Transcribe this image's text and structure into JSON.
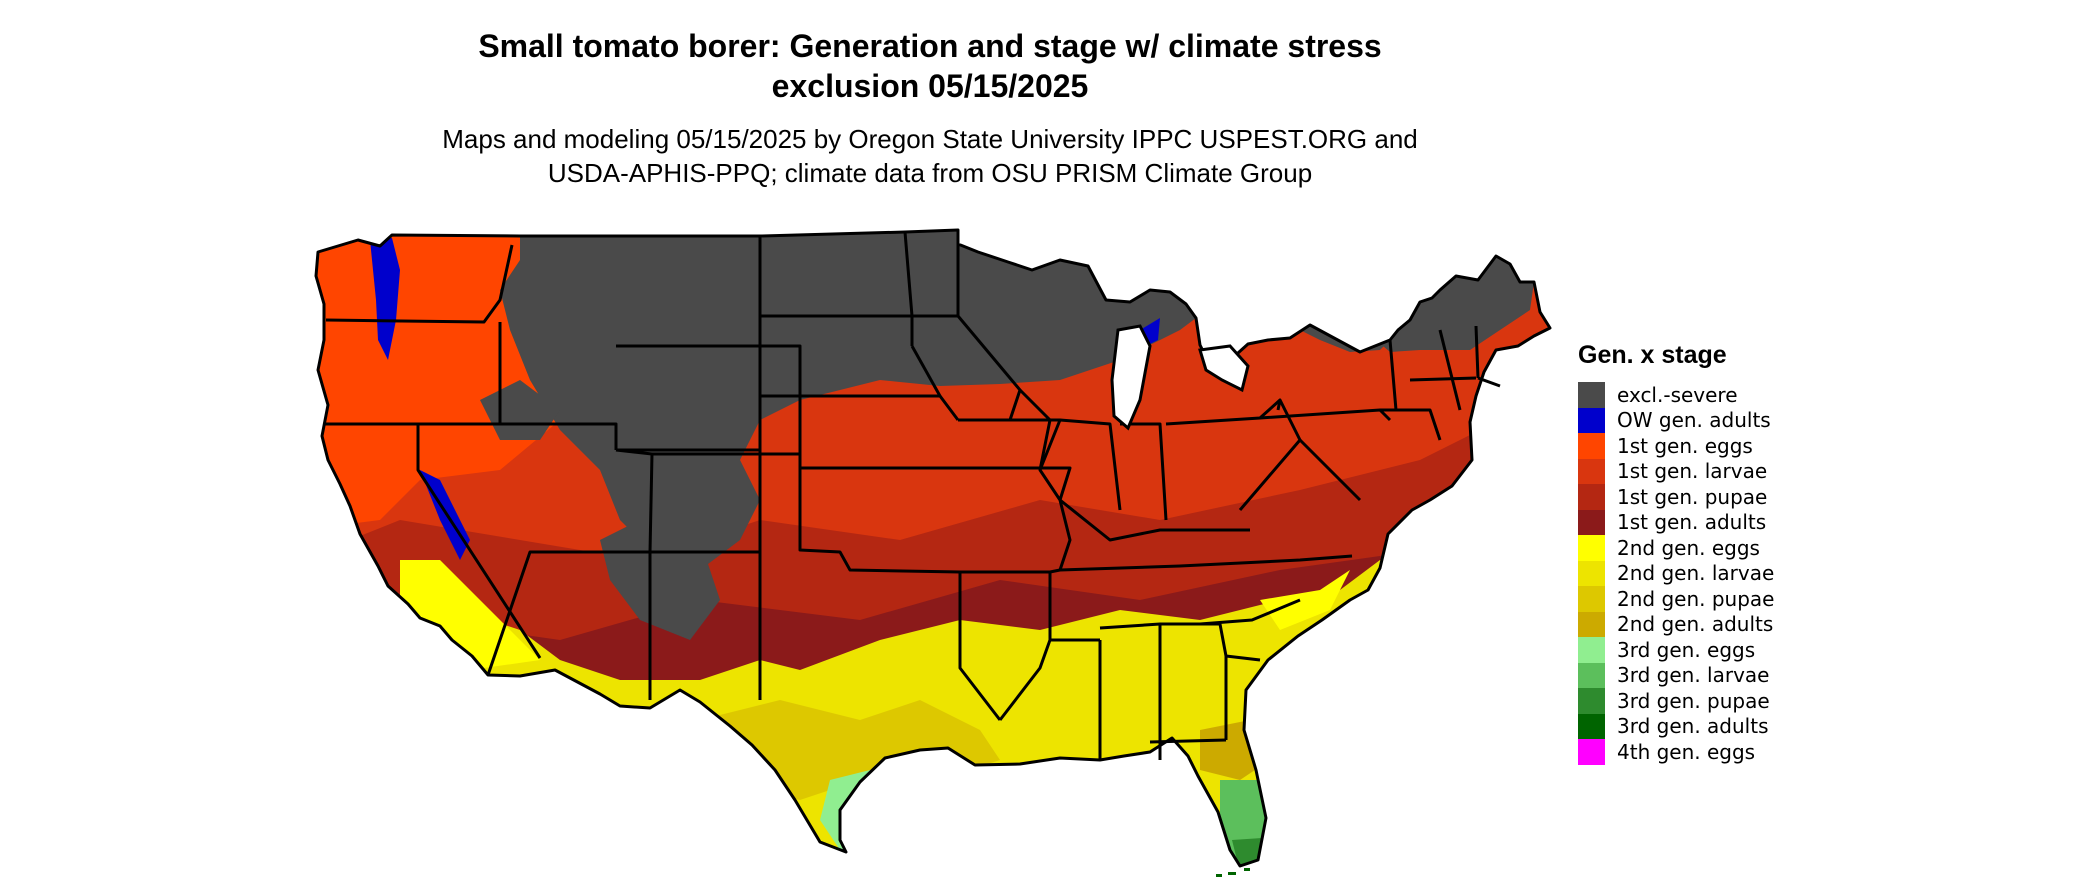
{
  "title": {
    "line1": "Small tomato borer: Generation and stage w/ climate stress",
    "line2": "exclusion 05/15/2025"
  },
  "subtitle": {
    "line1": "Maps and modeling 05/15/2025 by Oregon State University IPPC USPEST.ORG and",
    "line2": "USDA-APHIS-PPQ; climate data from OSU PRISM Climate Group"
  },
  "legend": {
    "title": "Gen. x stage",
    "items": [
      {
        "label": "excl.-severe",
        "color": "#4a4a4a"
      },
      {
        "label": "OW gen. adults",
        "color": "#0000cc"
      },
      {
        "label": "1st gen. eggs",
        "color": "#ff4500"
      },
      {
        "label": "1st gen. larvae",
        "color": "#d9360f"
      },
      {
        "label": "1st gen. pupae",
        "color": "#b42712"
      },
      {
        "label": "1st gen. adults",
        "color": "#8b1a1a"
      },
      {
        "label": "2nd gen. eggs",
        "color": "#ffff00"
      },
      {
        "label": "2nd gen. larvae",
        "color": "#ede400"
      },
      {
        "label": "2nd gen. pupae",
        "color": "#ddc800"
      },
      {
        "label": "2nd gen. adults",
        "color": "#ccaa00"
      },
      {
        "label": "3rd gen. eggs",
        "color": "#90ee90"
      },
      {
        "label": "3rd gen. larvae",
        "color": "#5cbf5c"
      },
      {
        "label": "3rd gen. pupae",
        "color": "#2e8b2e"
      },
      {
        "label": "3rd gen. adults",
        "color": "#006400"
      },
      {
        "label": "4th gen. eggs",
        "color": "#ff00ff"
      }
    ]
  }
}
